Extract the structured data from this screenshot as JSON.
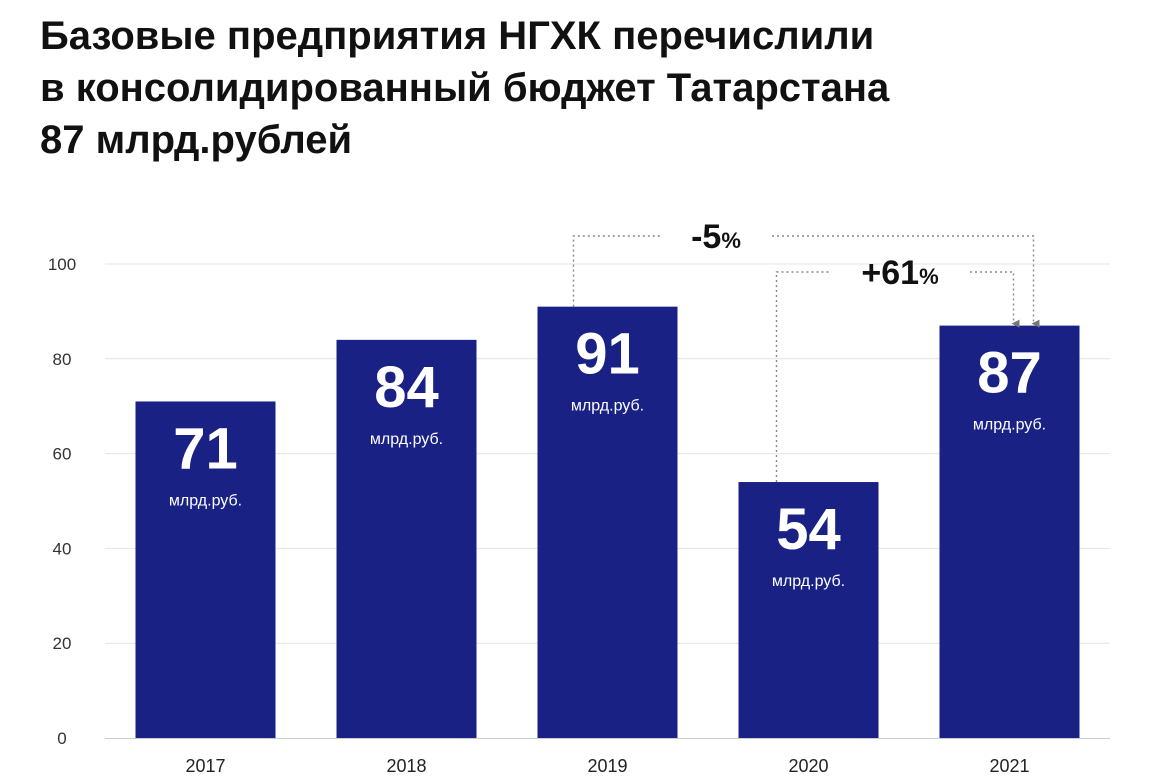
{
  "title_lines": [
    "Базовые предприятия НГХК перечислили",
    "в консолидированный бюджет Татарстана",
    "87 млрд.рублей"
  ],
  "chart_data": {
    "type": "bar",
    "categories": [
      "2017",
      "2018",
      "2019",
      "2020",
      "2021"
    ],
    "values": [
      71,
      84,
      91,
      54,
      87
    ],
    "value_labels": [
      "71",
      "84",
      "91",
      "54",
      "87"
    ],
    "unit_label": "млрд.руб.",
    "ylim": [
      0,
      100
    ],
    "yticks": [
      0,
      20,
      40,
      60,
      80,
      100
    ],
    "grid": true,
    "bar_color": "#1a2185",
    "annotations": [
      {
        "from": "2019",
        "to": "2021",
        "main": "-5",
        "pct": "%"
      },
      {
        "from": "2020",
        "to": "2021",
        "main": "+61",
        "pct": "%"
      }
    ]
  }
}
